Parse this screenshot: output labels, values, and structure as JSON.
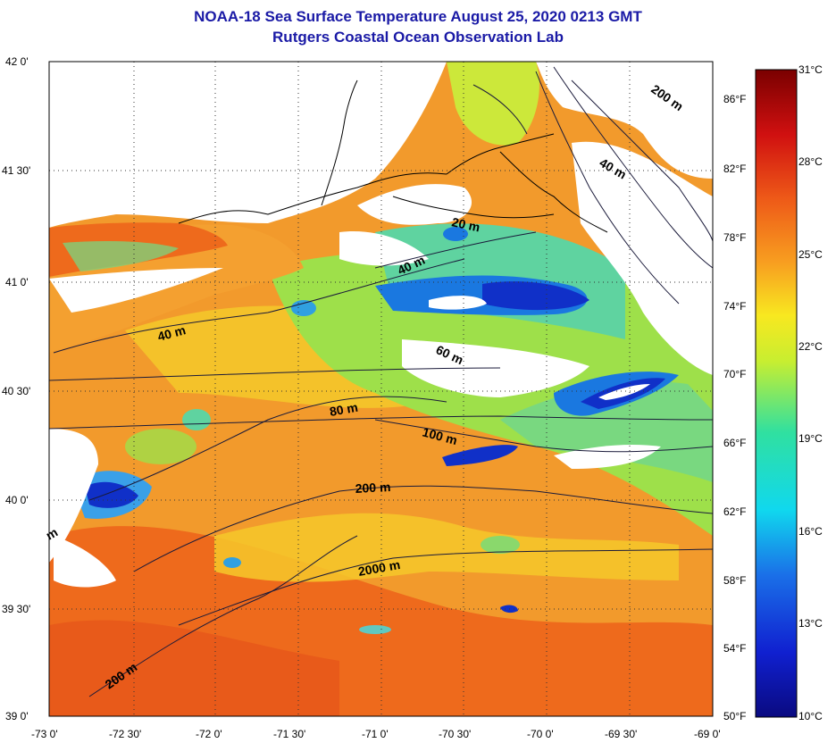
{
  "title": "NOAA-18 Sea Surface Temperature August 25, 2020 0213 GMT",
  "subtitle": "Rutgers Coastal Ocean Observation Lab",
  "lat_labels": [
    "42 0'",
    "41 30'",
    "41 0'",
    "40 30'",
    "40 0'",
    "39 30'",
    "39 0'"
  ],
  "lon_labels": [
    "-73 0'",
    "-72 30'",
    "-72 0'",
    "-71 30'",
    "-71 0'",
    "-70 30'",
    "-70 0'",
    "-69 30'",
    "-69 0'"
  ],
  "fahrenheit_labels": [
    "86°F",
    "82°F",
    "78°F",
    "74°F",
    "70°F",
    "66°F",
    "62°F",
    "58°F",
    "54°F",
    "50°F"
  ],
  "celsius_labels": [
    "31°C",
    "28°C",
    "25°C",
    "22°C",
    "19°C",
    "16°C",
    "13°C",
    "10°C"
  ],
  "contour_labels": [
    "200 m",
    "40 m",
    "20 m",
    "40 m",
    "40 m",
    "60 m",
    "80 m",
    "100 m",
    "200 m",
    "2000 m",
    "200 m",
    "m"
  ],
  "colors": {
    "title": "#1a1aa6",
    "land_nodata": "#ffffff",
    "warm": "#ee6a1c",
    "cool": "#1034c8"
  }
}
